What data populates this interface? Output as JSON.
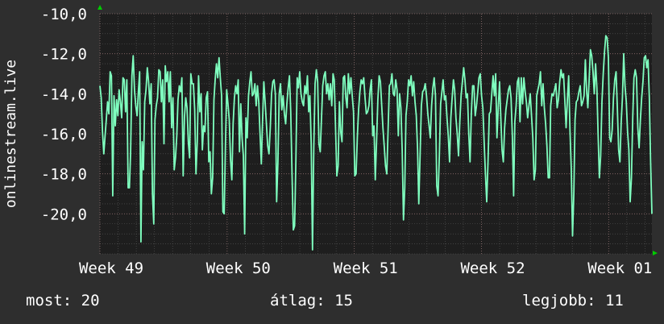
{
  "chart_data": {
    "type": "line",
    "ylabel": "onlinestream.live",
    "y_inverted": true,
    "ylim": [
      -10,
      -22
    ],
    "yticks": [
      -10,
      -12,
      -14,
      -16,
      -18,
      -20
    ],
    "ytick_labels": [
      "-10,0",
      "-12,0",
      "-14,0",
      "-16,0",
      "-18,0",
      "-20,0"
    ],
    "xtick_labels": [
      "Week 49",
      "Week 50",
      "Week 51",
      "Week 52",
      "Week 01"
    ],
    "x_range": [
      0,
      434
    ],
    "xtick_positions": [
      0,
      100,
      200,
      300,
      400
    ],
    "grid": true,
    "colors": {
      "background": "#2e2e2e",
      "plot_background": "#1e1e1e",
      "grid": "#5a5a5a",
      "line": "#7fffbf",
      "axis_arrow": "#00cc00"
    },
    "series": [
      {
        "values": [
          -13.6,
          -14.2,
          -15.9,
          -17.0,
          -16.1,
          -15.3,
          -14.4,
          -15.0,
          -12.9,
          -13.1,
          -19.1,
          -14.1,
          -15.6,
          -14.3,
          -15.1,
          -13.8,
          -14.4,
          -15.2,
          -13.2,
          -13.3,
          -14.9,
          -13.3,
          -18.7,
          -18.7,
          -16.9,
          -13.1,
          -12.1,
          -13.8,
          -14.6,
          -15.1,
          -13.9,
          -12.9,
          -21.4,
          -16.4,
          -17.8,
          -14.4,
          -13.8,
          -12.7,
          -13.4,
          -14.5,
          -13.5,
          -19.0,
          -20.5,
          -15.3,
          -14.6,
          -14.2,
          -12.8,
          -12.9,
          -14.4,
          -13.3,
          -16.5,
          -12.6,
          -13.4,
          -12.9,
          -14.4,
          -12.9,
          -15.7,
          -14.2,
          -17.8,
          -17.2,
          -16.1,
          -14.3,
          -13.6,
          -13.9,
          -13.2,
          -18.1,
          -15.2,
          -14.2,
          -14.7,
          -16.4,
          -17.2,
          -13.0,
          -13.5,
          -13.5,
          -14.8,
          -18.0,
          -16.4,
          -13.1,
          -14.9,
          -14.0,
          -16.8,
          -15.6,
          -15.9,
          -14.2,
          -13.9,
          -17.4,
          -16.9,
          -19.0,
          -18.2,
          -14.3,
          -13.3,
          -12.5,
          -13.2,
          -12.2,
          -13.2,
          -14.1,
          -19.9,
          -20.0,
          -16.5,
          -13.8,
          -14.5,
          -15.3,
          -17.3,
          -18.3,
          -15.5,
          -14.2,
          -13.6,
          -14.0,
          -13.3,
          -16.9,
          -14.5,
          -16.2,
          -17.1,
          -21.0,
          -15.2,
          -16.2,
          -14.1,
          -13.4,
          -12.9,
          -14.1,
          -14.0,
          -13.5,
          -14.6,
          -13.6,
          -14.4,
          -16.0,
          -17.5,
          -15.4,
          -13.4,
          -14.4,
          -15.5,
          -16.6,
          -17.0,
          -15.7,
          -14.0,
          -13.4,
          -13.3,
          -14.0,
          -19.4,
          -17.4,
          -14.0,
          -13.5,
          -14.8,
          -14.1,
          -15.0,
          -15.5,
          -14.5,
          -13.7,
          -13.1,
          -14.9,
          -18.0,
          -20.8,
          -20.6,
          -17.3,
          -13.2,
          -13.7,
          -12.9,
          -14.0,
          -14.4,
          -14.6,
          -13.6,
          -14.0,
          -13.1,
          -14.9,
          -14.1,
          -16.5,
          -21.8,
          -16.7,
          -13.5,
          -12.8,
          -13.4,
          -16.5,
          -16.9,
          -15.2,
          -13.6,
          -13.1,
          -12.9,
          -14.0,
          -13.5,
          -14.3,
          -13.5,
          -14.6,
          -13.0,
          -13.3,
          -15.7,
          -18.1,
          -17.6,
          -14.4,
          -15.9,
          -16.4,
          -13.2,
          -13.1,
          -14.2,
          -14.7,
          -13.0,
          -14.0,
          -13.2,
          -14.1,
          -14.9,
          -18.1,
          -18.0,
          -16.1,
          -14.8,
          -13.9,
          -13.3,
          -13.5,
          -13.2,
          -14.2,
          -15.0,
          -14.9,
          -14.6,
          -13.8,
          -13.3,
          -16.1,
          -15.6,
          -18.3,
          -16.4,
          -14.3,
          -13.1,
          -13.4,
          -14.6,
          -15.7,
          -16.6,
          -17.6,
          -18.0,
          -15.8,
          -13.6,
          -13.5,
          -13.0,
          -14.0,
          -14.1,
          -13.3,
          -13.8,
          -16.1,
          -14.0,
          -14.7,
          -16.8,
          -20.3,
          -18.7,
          -15.1,
          -14.4,
          -13.3,
          -13.6,
          -13.1,
          -14.1,
          -13.4,
          -14.4,
          -15.1,
          -16.8,
          -19.5,
          -17.1,
          -14.6,
          -13.9,
          -13.8,
          -13.5,
          -14.1,
          -15.0,
          -15.6,
          -16.2,
          -14.6,
          -13.7,
          -13.2,
          -14.1,
          -18.6,
          -19.1,
          -17.1,
          -14.5,
          -13.9,
          -13.3,
          -14.3,
          -14.1,
          -15.2,
          -16.1,
          -17.4,
          -15.2,
          -14.2,
          -13.3,
          -13.8,
          -15.2,
          -16.0,
          -17.1,
          -15.4,
          -14.1,
          -13.4,
          -12.7,
          -13.3,
          -14.2,
          -14.0,
          -16.0,
          -17.4,
          -15.0,
          -13.6,
          -13.6,
          -15.1,
          -14.6,
          -13.9,
          -13.2,
          -13.0,
          -14.1,
          -14.7,
          -16.4,
          -18.0,
          -19.4,
          -17.4,
          -15.0,
          -14.9,
          -14.0,
          -13.1,
          -14.1,
          -13.0,
          -16.2,
          -14.7,
          -13.4,
          -15.2,
          -16.8,
          -17.4,
          -15.7,
          -14.8,
          -14.3,
          -13.8,
          -13.6,
          -14.2,
          -16.1,
          -19.1,
          -15.4,
          -14.6,
          -13.4,
          -13.2,
          -15.4,
          -13.2,
          -14.5,
          -13.2,
          -13.9,
          -14.4,
          -15.2,
          -14.6,
          -14.0,
          -15.1,
          -16.2,
          -18.3,
          -17.8,
          -14.1,
          -13.8,
          -13.5,
          -12.9,
          -14.6,
          -13.5,
          -14.7,
          -15.5,
          -16.6,
          -18.2,
          -18.2,
          -14.6,
          -14.0,
          -14.1,
          -13.8,
          -13.5,
          -14.7,
          -14.3,
          -13.4,
          -12.8,
          -13.2,
          -13.0,
          -14.3,
          -15.7,
          -14.3,
          -13.1,
          -15.8,
          -17.7,
          -21.1,
          -19.0,
          -15.3,
          -14.4,
          -14.3,
          -13.9,
          -13.6,
          -14.6,
          -14.4,
          -14.1,
          -12.3,
          -13.8,
          -14.7,
          -13.3,
          -11.8,
          -12.1,
          -12.9,
          -14.0,
          -12.5,
          -13.7,
          -16.0,
          -18.2,
          -17.1,
          -14.4,
          -13.0,
          -11.9,
          -11.1,
          -11.2,
          -12.2,
          -16.2,
          -16.4,
          -15.8,
          -14.2,
          -13.3,
          -12.9,
          -14.7,
          -16.8,
          -17.4,
          -15.4,
          -14.2,
          -12.0,
          -13.6,
          -14.4,
          -15.9,
          -16.8,
          -19.4,
          -18.2,
          -15.2,
          -13.2,
          -12.8,
          -13.2,
          -15.7,
          -16.7,
          -15.3,
          -14.2,
          -13.4,
          -12.2,
          -12.1,
          -12.7,
          -12.3,
          -14.2,
          -17.4,
          -20.0
        ]
      }
    ]
  },
  "stats": {
    "now": "most: 20",
    "avg": "átlag: 15",
    "best": "legjobb: 11"
  }
}
